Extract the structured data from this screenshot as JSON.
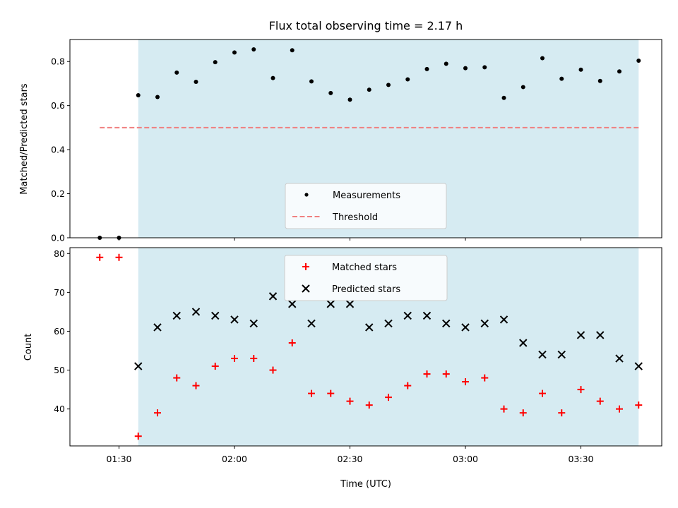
{
  "chart_data": [
    {
      "type": "scatter",
      "title": "Flux total observing time = 2.17 h",
      "xlabel": "",
      "ylabel": "Matched/Predicted stars",
      "ylim": [
        0,
        0.9
      ],
      "yticks": [
        0.0,
        0.2,
        0.4,
        0.6,
        0.8
      ],
      "ytick_labels": [
        "0.0",
        "0.2",
        "0.4",
        "0.6",
        "0.8"
      ],
      "xticks": [
        "01:30",
        "02:00",
        "02:30",
        "03:00",
        "03:30"
      ],
      "show_xtick_labels": false,
      "grid": false,
      "legend": {
        "placement": "lower-center",
        "entries": [
          "Measurements",
          "Threshold"
        ]
      },
      "x": [
        "01:25",
        "01:30",
        "01:35",
        "01:40",
        "01:45",
        "01:50",
        "01:55",
        "02:00",
        "02:05",
        "02:10",
        "02:15",
        "02:20",
        "02:25",
        "02:30",
        "02:35",
        "02:40",
        "02:45",
        "02:50",
        "02:55",
        "03:00",
        "03:05",
        "03:10",
        "03:15",
        "03:20",
        "03:25",
        "03:30",
        "03:35",
        "03:40",
        "03:45"
      ],
      "series": [
        {
          "name": "Measurements",
          "marker": "dot",
          "color": "#000000",
          "values": [
            0.0,
            0.0,
            0.647,
            0.639,
            0.75,
            0.708,
            0.797,
            0.841,
            0.855,
            0.725,
            0.851,
            0.71,
            0.657,
            0.627,
            0.672,
            0.694,
            0.719,
            0.766,
            0.79,
            0.77,
            0.774,
            0.635,
            0.684,
            0.815,
            0.722,
            0.763,
            0.712,
            0.755,
            0.804
          ]
        },
        {
          "name": "Threshold",
          "style": "dashed",
          "color": "#f08080",
          "x": [
            "01:25",
            "03:45"
          ],
          "values": [
            0.5,
            0.5
          ]
        }
      ],
      "shaded_region": {
        "from": "01:35",
        "to": "03:45",
        "color": "#add8e6"
      }
    },
    {
      "type": "scatter",
      "title": "",
      "xlabel": "Time (UTC)",
      "ylabel": "Count",
      "ylim": [
        30.5,
        81.5
      ],
      "yticks": [
        40,
        50,
        60,
        70,
        80
      ],
      "ytick_labels": [
        "40",
        "50",
        "60",
        "70",
        "80"
      ],
      "xticks": [
        "01:30",
        "02:00",
        "02:30",
        "03:00",
        "03:30"
      ],
      "show_xtick_labels": true,
      "grid": false,
      "legend": {
        "placement": "upper-center",
        "entries": [
          "Matched stars",
          "Predicted stars"
        ]
      },
      "x": [
        "01:25",
        "01:30",
        "01:35",
        "01:40",
        "01:45",
        "01:50",
        "01:55",
        "02:00",
        "02:05",
        "02:10",
        "02:15",
        "02:20",
        "02:25",
        "02:30",
        "02:35",
        "02:40",
        "02:45",
        "02:50",
        "02:55",
        "03:00",
        "03:05",
        "03:10",
        "03:15",
        "03:20",
        "03:25",
        "03:30",
        "03:35",
        "03:40",
        "03:45"
      ],
      "series": [
        {
          "name": "Matched stars",
          "marker": "plus",
          "color": "#ff0000",
          "values": [
            79,
            79,
            33,
            39,
            48,
            46,
            51,
            53,
            53,
            50,
            57,
            44,
            44,
            42,
            41,
            43,
            46,
            49,
            49,
            47,
            48,
            40,
            39,
            44,
            39,
            45,
            42,
            40,
            41
          ]
        },
        {
          "name": "Predicted stars",
          "marker": "x",
          "color": "#000000",
          "values": [
            null,
            null,
            51,
            61,
            64,
            65,
            64,
            63,
            62,
            69,
            67,
            62,
            67,
            67,
            61,
            62,
            64,
            64,
            62,
            61,
            62,
            63,
            57,
            54,
            54,
            59,
            59,
            53,
            51
          ]
        }
      ],
      "shaded_region": {
        "from": "01:35",
        "to": "03:45",
        "color": "#add8e6"
      }
    }
  ]
}
